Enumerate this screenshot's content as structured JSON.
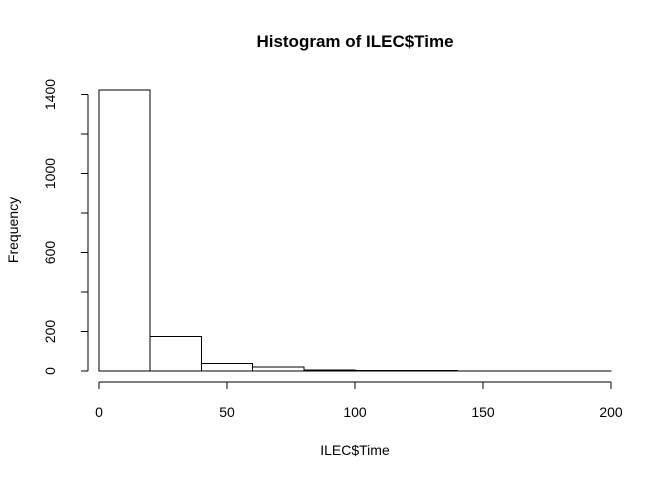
{
  "chart_data": {
    "type": "bar",
    "title": "Histogram of ILEC$Time",
    "xlabel": "ILEC$Time",
    "ylabel": "Frequency",
    "bin_edges": [
      0,
      20,
      40,
      60,
      80,
      100,
      120,
      140,
      160,
      180,
      200
    ],
    "values": [
      1423,
      175,
      38,
      20,
      6,
      3,
      2,
      1,
      1,
      1
    ],
    "xlim": [
      0,
      200
    ],
    "ylim": [
      0,
      1423
    ],
    "x_ticks": [
      0,
      50,
      100,
      150,
      200
    ],
    "y_ticks": [
      0,
      200,
      600,
      1000,
      1400
    ],
    "y_ticks_unlabeled": [
      400,
      800,
      1200
    ],
    "grid": false,
    "legend": "none"
  }
}
